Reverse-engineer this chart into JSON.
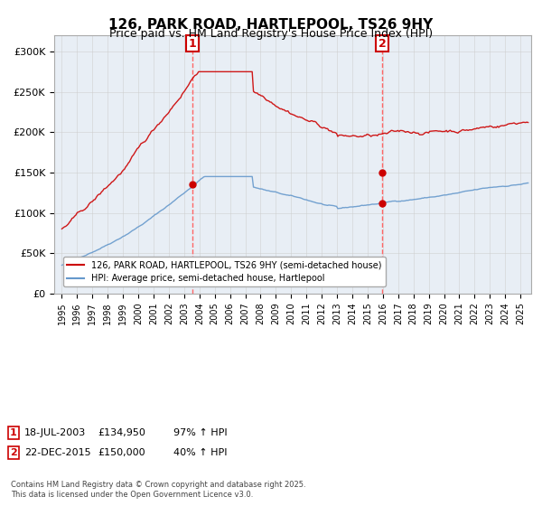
{
  "title_line1": "126, PARK ROAD, HARTLEPOOL, TS26 9HY",
  "title_line2": "Price paid vs. HM Land Registry's House Price Index (HPI)",
  "legend_red": "126, PARK ROAD, HARTLEPOOL, TS26 9HY (semi-detached house)",
  "legend_blue": "HPI: Average price, semi-detached house, Hartlepool",
  "sale1_label": "1",
  "sale1_date": "18-JUL-2003",
  "sale1_price": 134950,
  "sale1_hpi_pct": "97% ↑ HPI",
  "sale2_label": "2",
  "sale2_date": "22-DEC-2015",
  "sale2_price": 150000,
  "sale2_hpi_pct": "40% ↑ HPI",
  "copyright_text": "Contains HM Land Registry data © Crown copyright and database right 2025.\nThis data is licensed under the Open Government Licence v3.0.",
  "ylim_max": 320000,
  "ylim_min": 0,
  "red_color": "#cc0000",
  "blue_color": "#6699cc",
  "marker_box_color": "#cc0000",
  "dashed_line_color": "#ff6666",
  "background_color": "#ffffff",
  "grid_color": "#cccccc",
  "plot_bg_color": "#e8eef5"
}
